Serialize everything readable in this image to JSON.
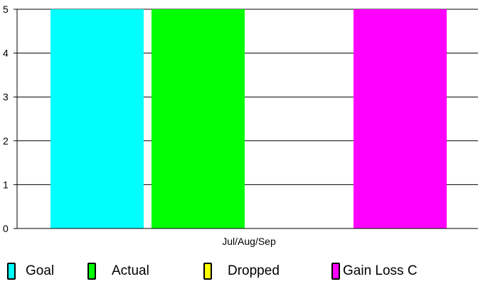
{
  "chart_data": {
    "type": "bar",
    "categories": [
      "Jul/Aug/Sep"
    ],
    "series": [
      {
        "name": "Goal",
        "values": [
          5
        ],
        "color": "#00ffff"
      },
      {
        "name": "Actual",
        "values": [
          5
        ],
        "color": "#00ff00"
      },
      {
        "name": "Dropped",
        "values": [
          0
        ],
        "color": "#ffff00"
      },
      {
        "name": "Gain Loss C",
        "values": [
          5
        ],
        "color": "#ff00ff"
      }
    ],
    "yticks": [
      "0",
      "1",
      "2",
      "3",
      "4",
      "5"
    ],
    "ylim": [
      0,
      5
    ],
    "grid": true,
    "legend_position": "bottom",
    "title": "",
    "xlabel": "",
    "ylabel": ""
  }
}
